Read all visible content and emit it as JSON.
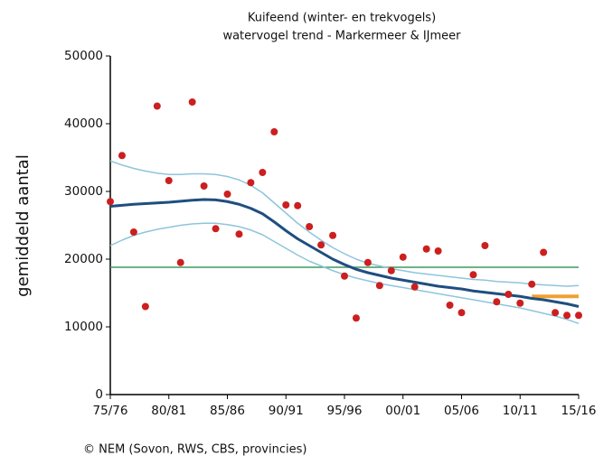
{
  "chart_data": {
    "type": "line",
    "title": "Kuifeend (winter- en trekvogels)",
    "subtitle": "watervogel trend - Markermeer & IJmeer",
    "ylabel": "gemiddeld aantal",
    "source": "© NEM (Sovon, RWS, CBS, provincies)",
    "categories": [
      "75/76",
      null,
      null,
      null,
      null,
      "80/81",
      null,
      null,
      null,
      null,
      "85/86",
      null,
      null,
      null,
      null,
      "90/91",
      null,
      null,
      null,
      null,
      "95/96",
      null,
      null,
      null,
      null,
      "00/01",
      null,
      null,
      null,
      null,
      "05/06",
      null,
      null,
      null,
      null,
      "10/11",
      null,
      null,
      null,
      null,
      "15/16"
    ],
    "ylim": [
      0,
      50000
    ],
    "yticks": [
      0,
      10000,
      20000,
      30000,
      40000,
      50000
    ],
    "mean_line": {
      "value": 18800,
      "color": "#3f9a5f"
    },
    "series": [
      {
        "style": "line",
        "color": "#8ec5dc",
        "width": 1.5,
        "values": [
          34500,
          33900,
          33400,
          33000,
          32700,
          32500,
          32500,
          32600,
          32600,
          32500,
          32200,
          31700,
          30900,
          29800,
          28300,
          26800,
          25300,
          24000,
          22800,
          21700,
          20800,
          20000,
          19400,
          19000,
          18600,
          18300,
          18000,
          17800,
          17600,
          17400,
          17200,
          17000,
          16900,
          16700,
          16600,
          16500,
          16300,
          16200,
          16100,
          16000,
          16100
        ]
      },
      {
        "style": "line",
        "color": "#8ec5dc",
        "width": 1.5,
        "values": [
          22000,
          22800,
          23500,
          24000,
          24400,
          24700,
          25000,
          25200,
          25300,
          25300,
          25100,
          24800,
          24300,
          23600,
          22600,
          21600,
          20600,
          19700,
          19000,
          18300,
          17700,
          17200,
          16800,
          16400,
          16100,
          15800,
          15500,
          15200,
          14900,
          14600,
          14300,
          14000,
          13700,
          13400,
          13100,
          12800,
          12400,
          12000,
          11600,
          11100,
          10500
        ]
      },
      {
        "style": "line",
        "color": "#f0a030",
        "width": 4,
        "values": [
          null,
          null,
          null,
          null,
          null,
          null,
          null,
          null,
          null,
          null,
          null,
          null,
          null,
          null,
          null,
          null,
          null,
          null,
          null,
          null,
          null,
          null,
          null,
          null,
          null,
          null,
          null,
          null,
          null,
          null,
          null,
          null,
          null,
          null,
          null,
          null,
          14500,
          14500,
          14500,
          14500,
          14500
        ]
      },
      {
        "style": "line",
        "color": "#1f4e80",
        "width": 3,
        "values": [
          27800,
          27950,
          28100,
          28200,
          28300,
          28400,
          28550,
          28700,
          28800,
          28750,
          28500,
          28100,
          27500,
          26700,
          25500,
          24200,
          23000,
          22000,
          21000,
          20000,
          19200,
          18500,
          18000,
          17600,
          17200,
          16900,
          16600,
          16300,
          16000,
          15800,
          15600,
          15300,
          15100,
          14900,
          14700,
          14500,
          14200,
          14000,
          13700,
          13400,
          13000
        ]
      },
      {
        "style": "points",
        "color": "#cc1f1f",
        "values": [
          28500,
          35300,
          24000,
          13000,
          42600,
          31600,
          19500,
          43200,
          30800,
          24500,
          29600,
          23700,
          31300,
          32800,
          38800,
          28000,
          27900,
          24800,
          22100,
          23500,
          17500,
          11300,
          19500,
          16100,
          18300,
          20300,
          15900,
          21500,
          21200,
          13200,
          12100,
          17700,
          22000,
          13700,
          14800,
          13500,
          16300,
          21000,
          12100,
          11700,
          11700
        ]
      }
    ]
  }
}
